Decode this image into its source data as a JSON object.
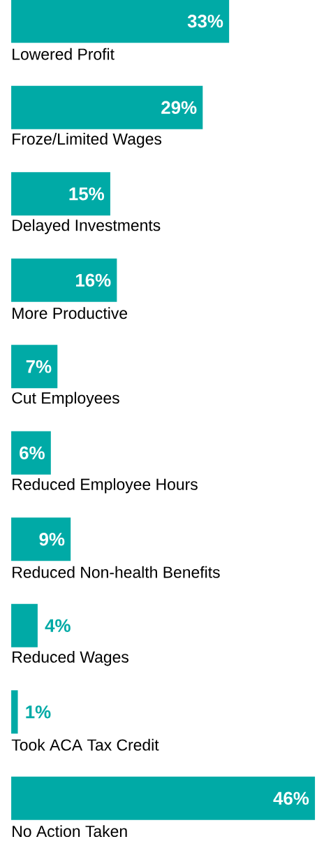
{
  "chart_data": {
    "type": "bar",
    "orientation": "horizontal",
    "color": "#00aaa6",
    "categories": [
      "Lowered Profit",
      "Froze/Limited Wages",
      "Delayed Investments",
      "More Productive",
      "Cut Employees",
      "Reduced Employee Hours",
      "Reduced Non-health Benefits",
      "Reduced Wages",
      "Took ACA Tax Credit",
      "No Action Taken"
    ],
    "values": [
      33,
      29,
      15,
      16,
      7,
      6,
      9,
      4,
      1,
      46
    ],
    "value_labels": [
      "33%",
      "29%",
      "15%",
      "16%",
      "7%",
      "6%",
      "9%",
      "4%",
      "1%",
      "46%"
    ],
    "xlim": [
      0,
      46
    ]
  }
}
